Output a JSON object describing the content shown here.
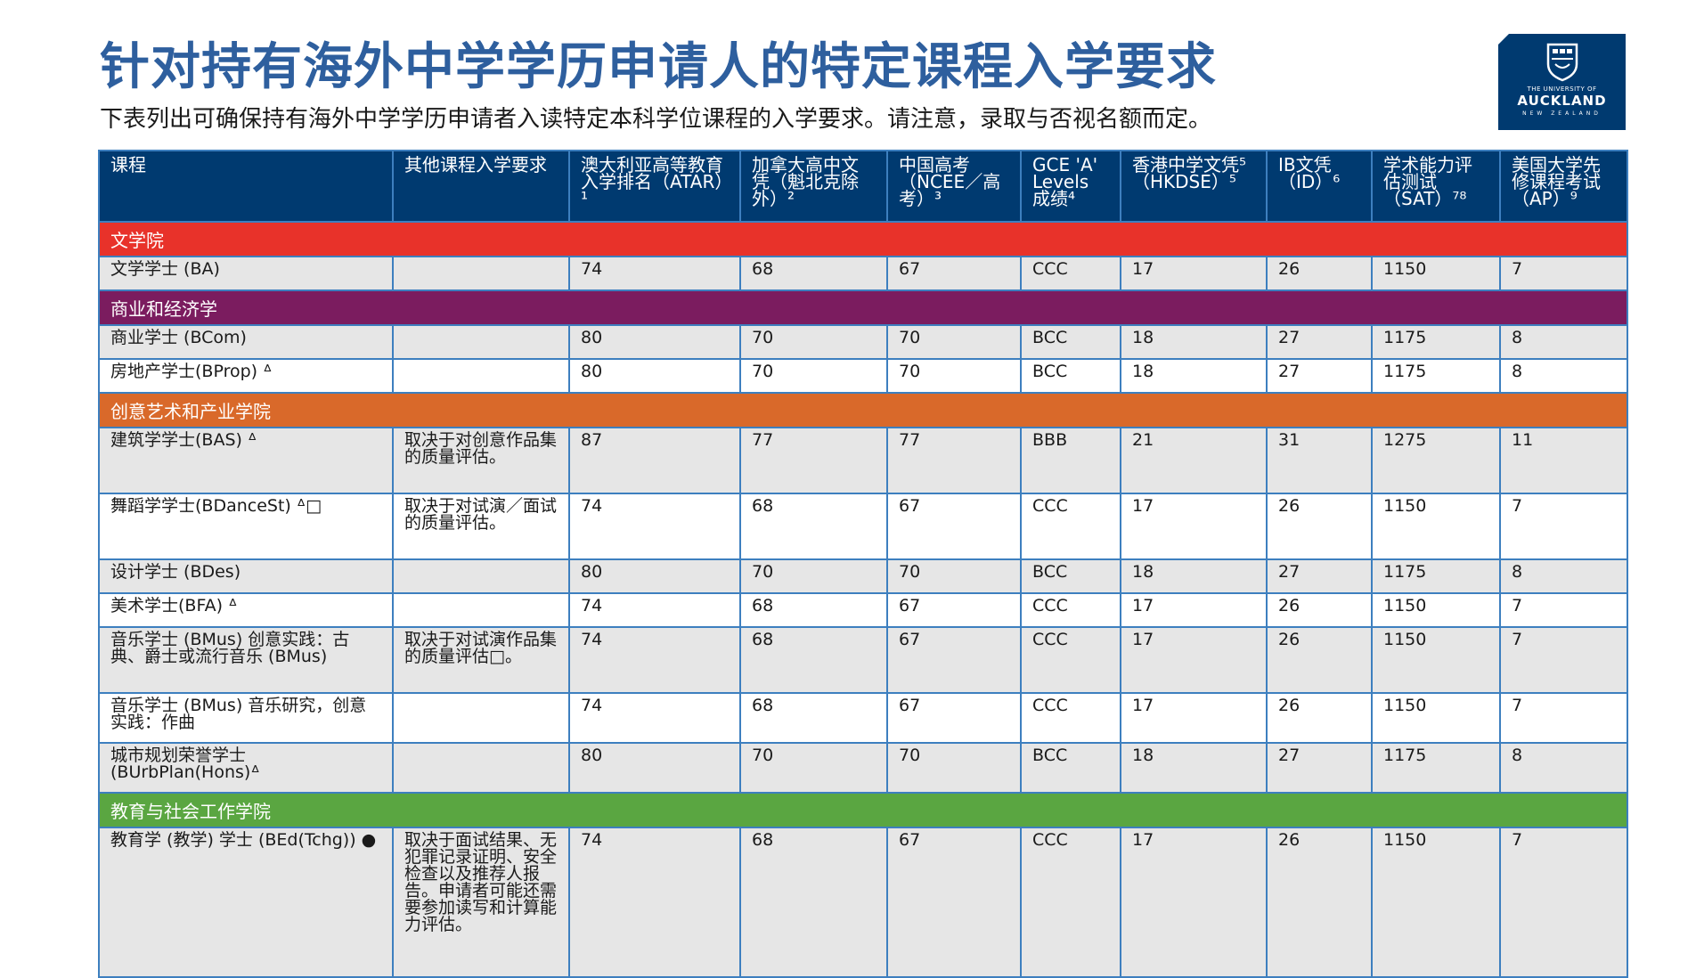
{
  "title": "针对持有海外中学学历申请人的特定课程入学要求",
  "subtitle": "下表列出可确保持有海外中学学历申请者入读特定本科学位课程的入学要求。请注意，录取与否视名额而定。",
  "logo": {
    "line1": "THE UNIVERSITY OF",
    "line2": "AUCKLAND",
    "line3": "NEW ZEALAND"
  },
  "colors": {
    "header": "#003a70",
    "arts": "#e8322a",
    "business": "#7b1c5f",
    "creative": "#d9692a",
    "education": "#5aa641",
    "border": "#3d7fbf",
    "title": "#2e5f9e"
  },
  "headers": [
    "课程",
    "其他课程入学要求",
    "澳大利亚高等教育入学排名（ATAR）¹",
    "加拿大高中文凭（魁北克除外）²",
    "中国高考（NCEE／高考）³",
    "GCE 'A' Levels 成绩⁴",
    "香港中学文凭⁵（HKDSE）⁵",
    "IB文凭（ID）⁶",
    "学术能力评估测试（SAT）⁷⁸",
    "美国大学先修课程考试（AP）⁹"
  ],
  "sections": [
    {
      "name": "文学院",
      "color": "#e8322a",
      "rows": [
        {
          "course": "文学学士 (BA)",
          "other": "",
          "atar": "74",
          "canada": "68",
          "ncee": "67",
          "gce": "CCC",
          "hkdse": "17",
          "ib": "26",
          "sat": "1150",
          "ap": "7"
        }
      ]
    },
    {
      "name": "商业和经济学",
      "color": "#7b1c5f",
      "rows": [
        {
          "course": "商业学士 (BCom)",
          "other": "",
          "atar": "80",
          "canada": "70",
          "ncee": "70",
          "gce": "BCC",
          "hkdse": "18",
          "ib": "27",
          "sat": "1175",
          "ap": "8"
        },
        {
          "course": "房地产学士(BProp) ᐞ",
          "other": "",
          "atar": "80",
          "canada": "70",
          "ncee": "70",
          "gce": "BCC",
          "hkdse": "18",
          "ib": "27",
          "sat": "1175",
          "ap": "8"
        }
      ]
    },
    {
      "name": "创意艺术和产业学院",
      "color": "#d9692a",
      "rows": [
        {
          "course": "建筑学学士(BAS) ᐞ",
          "other": "取决于对创意作品集的质量评估。",
          "atar": "87",
          "canada": "77",
          "ncee": "77",
          "gce": "BBB",
          "hkdse": "21",
          "ib": "31",
          "sat": "1275",
          "ap": "11"
        },
        {
          "course": "舞蹈学学士(BDanceSt) ᐞ□",
          "other": "取决于对试演／面试的质量评估。",
          "atar": "74",
          "canada": "68",
          "ncee": "67",
          "gce": "CCC",
          "hkdse": "17",
          "ib": "26",
          "sat": "1150",
          "ap": "7"
        },
        {
          "course": "设计学士 (BDes)",
          "other": "",
          "atar": "80",
          "canada": "70",
          "ncee": "70",
          "gce": "BCC",
          "hkdse": "18",
          "ib": "27",
          "sat": "1175",
          "ap": "8"
        },
        {
          "course": "美术学士(BFA) ᐞ",
          "other": "",
          "atar": "74",
          "canada": "68",
          "ncee": "67",
          "gce": "CCC",
          "hkdse": "17",
          "ib": "26",
          "sat": "1150",
          "ap": "7"
        },
        {
          "course": "音乐学士 (BMus) 创意实践：古典、爵士或流行音乐 (BMus)",
          "other": "取决于对试演作品集的质量评估□。",
          "atar": "74",
          "canada": "68",
          "ncee": "67",
          "gce": "CCC",
          "hkdse": "17",
          "ib": "26",
          "sat": "1150",
          "ap": "7"
        },
        {
          "course": "音乐学士 (BMus) 音乐研究，创意实践：作曲",
          "other": "",
          "atar": "74",
          "canada": "68",
          "ncee": "67",
          "gce": "CCC",
          "hkdse": "17",
          "ib": "26",
          "sat": "1150",
          "ap": "7"
        },
        {
          "course": "城市规划荣誉学士 (BUrbPlan(Hons)ᐞ",
          "other": "",
          "atar": "80",
          "canada": "70",
          "ncee": "70",
          "gce": "BCC",
          "hkdse": "18",
          "ib": "27",
          "sat": "1175",
          "ap": "8"
        }
      ]
    },
    {
      "name": "教育与社会工作学院",
      "color": "#5aa641",
      "rows": [
        {
          "course": "教育学 (教学) 学士 (BEd(Tchg)) ●",
          "other": "取决于面试结果、无犯罪记录证明、安全检查以及推荐人报告。申请者可能还需要参加读写和计算能力评估。",
          "atar": "74",
          "canada": "68",
          "ncee": "67",
          "gce": "CCC",
          "hkdse": "17",
          "ib": "26",
          "sat": "1150",
          "ap": "7"
        }
      ]
    }
  ]
}
